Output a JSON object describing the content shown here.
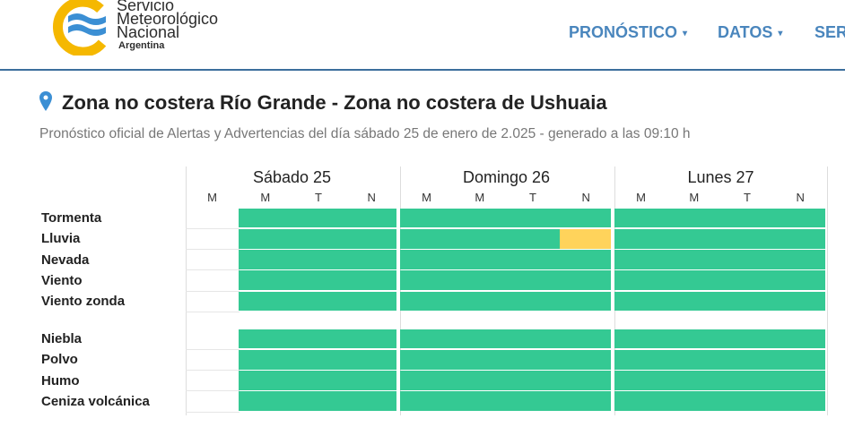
{
  "header": {
    "logo": {
      "lines": [
        "Servicio",
        "Meteorológico",
        "Nacional"
      ],
      "country": "Argentina"
    },
    "nav": [
      "PRONÓSTICO",
      "DATOS",
      "SER"
    ]
  },
  "title": "Zona no costera Río Grande - Zona no costera de Ushuaia",
  "subtitle": "Pronóstico oficial de Alertas y Advertencias del día sábado 25 de enero de 2.025 - generado a las 09:10 h",
  "table": {
    "days": [
      {
        "name": "Sábado 25",
        "periods": [
          "M",
          "M",
          "T",
          "N"
        ]
      },
      {
        "name": "Domingo 26",
        "periods": [
          "M",
          "M",
          "T",
          "N"
        ]
      },
      {
        "name": "Lunes 27",
        "periods": [
          "M",
          "M",
          "T",
          "N"
        ]
      }
    ],
    "groups": [
      [
        {
          "label": "Tormenta",
          "cells": [
            null,
            "#34c993",
            "#34c993",
            "#34c993",
            "#34c993",
            "#34c993",
            "#34c993",
            "#34c993",
            "#34c993",
            "#34c993",
            "#34c993",
            "#34c993"
          ]
        },
        {
          "label": "Lluvia",
          "cells": [
            null,
            "#34c993",
            "#34c993",
            "#34c993",
            "#34c993",
            "#34c993",
            "#34c993",
            "#ffd35b",
            "#34c993",
            "#34c993",
            "#34c993",
            "#34c993"
          ]
        },
        {
          "label": "Nevada",
          "cells": [
            null,
            "#34c993",
            "#34c993",
            "#34c993",
            "#34c993",
            "#34c993",
            "#34c993",
            "#34c993",
            "#34c993",
            "#34c993",
            "#34c993",
            "#34c993"
          ]
        },
        {
          "label": "Viento",
          "cells": [
            null,
            "#34c993",
            "#34c993",
            "#34c993",
            "#34c993",
            "#34c993",
            "#34c993",
            "#34c993",
            "#34c993",
            "#34c993",
            "#34c993",
            "#34c993"
          ]
        },
        {
          "label": "Viento zonda",
          "cells": [
            null,
            "#34c993",
            "#34c993",
            "#34c993",
            "#34c993",
            "#34c993",
            "#34c993",
            "#34c993",
            "#34c993",
            "#34c993",
            "#34c993",
            "#34c993"
          ]
        }
      ],
      [
        {
          "label": "Niebla",
          "cells": [
            null,
            "#34c993",
            "#34c993",
            "#34c993",
            "#34c993",
            "#34c993",
            "#34c993",
            "#34c993",
            "#34c993",
            "#34c993",
            "#34c993",
            "#34c993"
          ]
        },
        {
          "label": "Polvo",
          "cells": [
            null,
            "#34c993",
            "#34c993",
            "#34c993",
            "#34c993",
            "#34c993",
            "#34c993",
            "#34c993",
            "#34c993",
            "#34c993",
            "#34c993",
            "#34c993"
          ]
        },
        {
          "label": "Humo",
          "cells": [
            null,
            "#34c993",
            "#34c993",
            "#34c993",
            "#34c993",
            "#34c993",
            "#34c993",
            "#34c993",
            "#34c993",
            "#34c993",
            "#34c993",
            "#34c993"
          ]
        },
        {
          "label": "Ceniza volcánica",
          "cells": [
            null,
            "#34c993",
            "#34c993",
            "#34c993",
            "#34c993",
            "#34c993",
            "#34c993",
            "#34c993",
            "#34c993",
            "#34c993",
            "#34c993",
            "#34c993"
          ]
        }
      ]
    ]
  }
}
